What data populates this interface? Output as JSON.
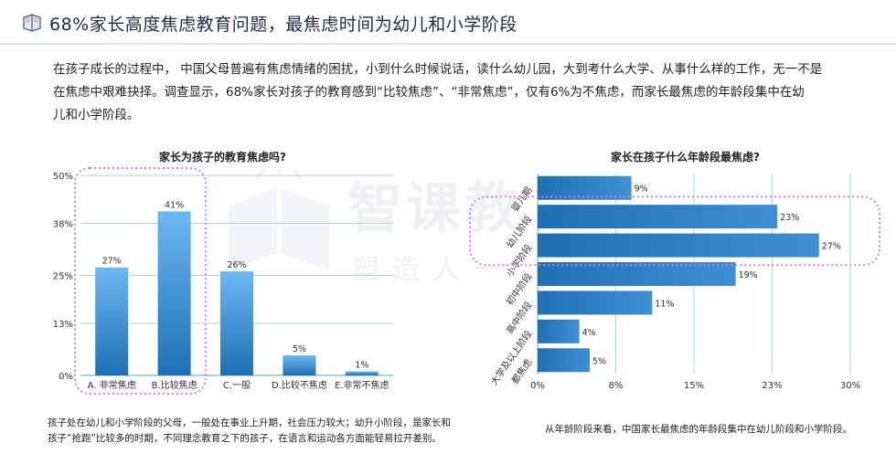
{
  "header": {
    "title": "68%家长高度焦虑教育问题，最焦虑时间为幼儿和小学阶段"
  },
  "intro": {
    "line1": "在孩子成长的过程中， 中国父母普遍有焦虑情绪的困扰，小到什么时候说话，读什么幼儿园，大到考什么大学、从事什么样的工作，无一不是",
    "line2": "在焦虑中艰难抉择。调查显示，68%家长对孩子的教育感到“比较焦虑”、“非常焦虑”，仅有6%为不焦虑，而家长最焦虑的年龄段集中在幼",
    "line3": "儿和小学阶段。"
  },
  "watermark": {
    "big": "智课教",
    "small": "塑造人一"
  },
  "left_note": {
    "line1": "孩子处在幼儿和小学阶段的父母，一般处在事业上升期，社会压力较大；幼升小阶段，是家长和",
    "line2": "孩子“抢跑”比较多的时期，不同理念教育之下的孩子，在语言和运动各方面能轻易拉开差别。"
  },
  "right_note": {
    "line1": "从年龄阶段来看，中国家长最焦虑的年龄段集中在幼儿阶段和小学阶段。"
  },
  "colors": {
    "bar_light": "#6cb8f0",
    "bar_dark": "#1f6fb5",
    "grid": "#a9d3ee",
    "highlight": "#cf7fe6"
  },
  "chart_data": [
    {
      "type": "bar",
      "title": "家长为孩子的教育焦虑吗?",
      "categories": [
        "A. 非常焦虑",
        "B.比较焦虑",
        "C.一般",
        "D.比较不焦虑",
        "E.非常不焦虑"
      ],
      "values": [
        27,
        41,
        26,
        5,
        1
      ],
      "value_labels": [
        "27%",
        "41%",
        "26%",
        "5%",
        "1%"
      ],
      "y_ticks": [
        0,
        13,
        25,
        38,
        50
      ],
      "y_tick_labels": [
        "0%",
        "13%",
        "25%",
        "38%",
        "50%"
      ],
      "ylim": [
        0,
        50
      ],
      "grid": true,
      "highlight": [
        "A. 非常焦虑",
        "B.比较焦虑"
      ]
    },
    {
      "type": "bar",
      "orientation": "horizontal",
      "title": "家长在孩子什么年龄段最焦虑?",
      "categories": [
        "婴儿期",
        "幼儿阶段",
        "小学阶段",
        "初中阶段",
        "高中阶段",
        "大学及以上阶段",
        "都焦虑"
      ],
      "values": [
        9,
        23,
        27,
        19,
        11,
        4,
        5
      ],
      "value_labels": [
        "9%",
        "23%",
        "27%",
        "19%",
        "11%",
        "4%",
        "5%"
      ],
      "x_ticks": [
        0,
        7.5,
        15,
        22.5,
        30
      ],
      "x_tick_labels": [
        "0%",
        "8%",
        "15%",
        "23%",
        "30%"
      ],
      "xlim": [
        0,
        30
      ],
      "grid": true,
      "highlight": [
        "幼儿阶段",
        "小学阶段"
      ]
    }
  ]
}
